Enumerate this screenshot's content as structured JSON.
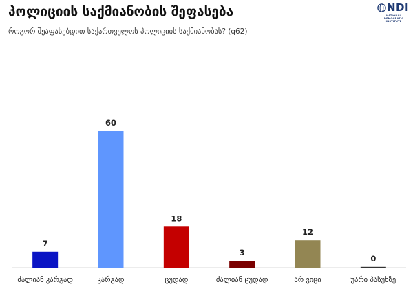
{
  "header": {
    "title": "პოლიციის საქმიანობის შეფასება",
    "subtitle": "როგორ შეაფასებდით საქართველოს პოლიციის საქმიანობას? (q62)"
  },
  "logo": {
    "mark": "NDI",
    "lines": [
      "NATIONAL",
      "DEMOCRATIC",
      "INSTITUTE"
    ]
  },
  "chart_data": {
    "type": "bar",
    "title": "პოლიციის საქმიანობის შეფასება",
    "subtitle": "როგორ შეაფასებდით საქართველოს პოლიციის საქმიანობას? (q62)",
    "categories": [
      "ძალიან კარგად",
      "კარგად",
      "ცუდად",
      "ძალიან ცუდად",
      "არ ვიცი",
      "უარი პასუხზე"
    ],
    "values": [
      7,
      60,
      18,
      3,
      12,
      0
    ],
    "colors": [
      "#0a14c4",
      "#5f96fe",
      "#c40000",
      "#7a0000",
      "#938653",
      "#333333"
    ],
    "ylim": [
      0,
      60
    ],
    "grid": false,
    "legend": "none"
  }
}
